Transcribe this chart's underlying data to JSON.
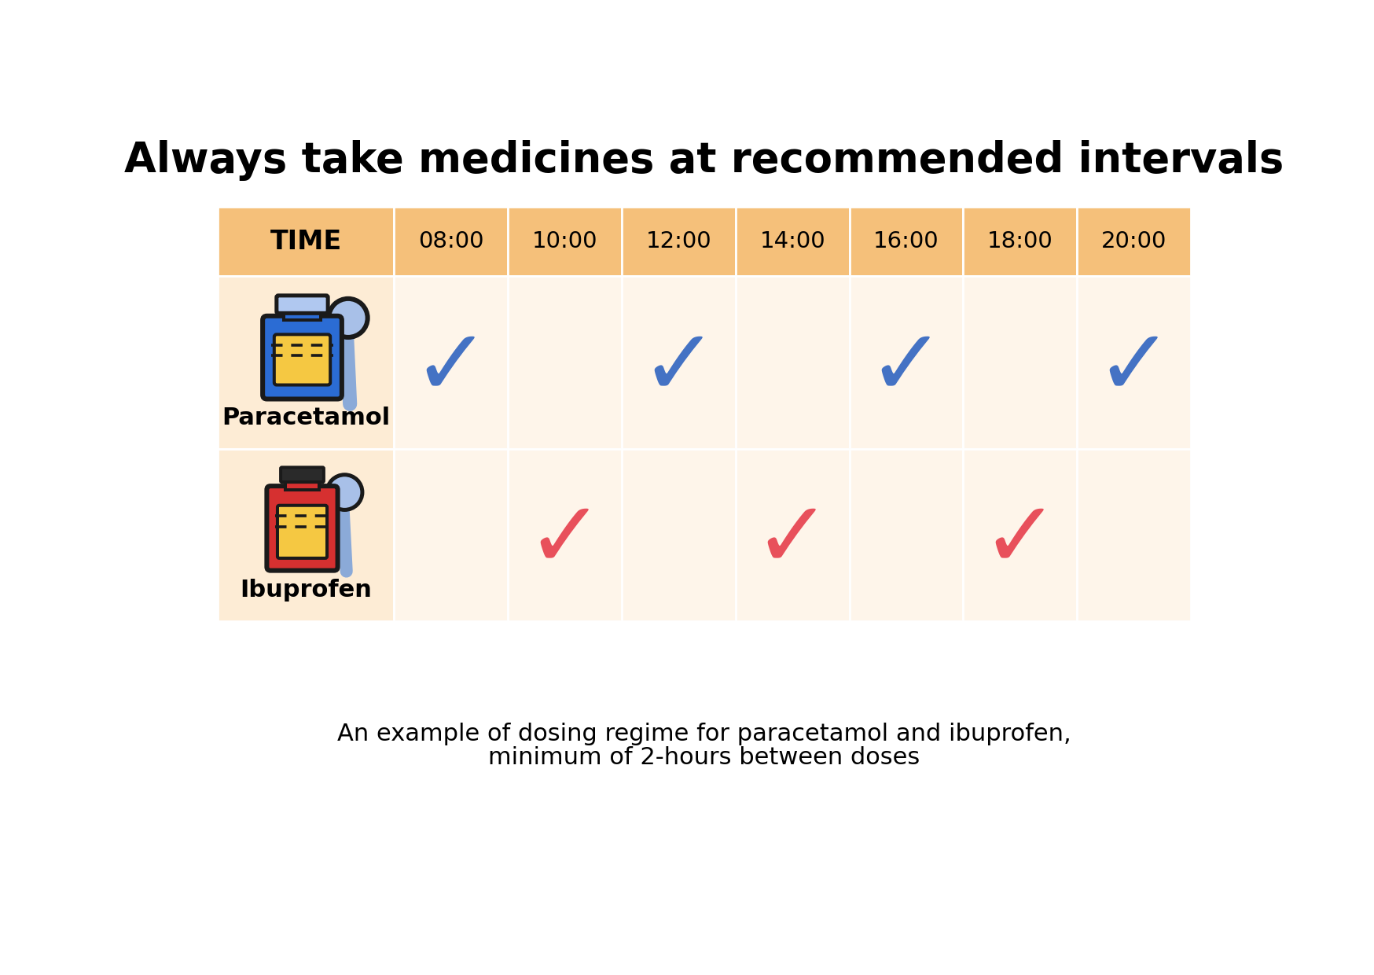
{
  "title": "Always take medicines at recommended intervals",
  "subtitle_line1": "An example of dosing regime for paracetamol and ibuprofen,",
  "subtitle_line2": "minimum of 2-hours between doses",
  "times": [
    "08:00",
    "10:00",
    "12:00",
    "14:00",
    "16:00",
    "18:00",
    "20:00"
  ],
  "paracetamol_doses": [
    1,
    0,
    1,
    0,
    1,
    0,
    1
  ],
  "ibuprofen_doses": [
    0,
    1,
    0,
    1,
    0,
    1,
    0
  ],
  "header_bg": "#F5C07A",
  "row_label_bg": "#FDECD5",
  "cell_bg": "#FEF5EA",
  "check_blue": "#4472C4",
  "check_red": "#E8505B",
  "background": "#FFFFFF",
  "title_fontsize": 38,
  "time_fontsize": 22,
  "label_fontsize": 22,
  "subtitle_fontsize": 22
}
